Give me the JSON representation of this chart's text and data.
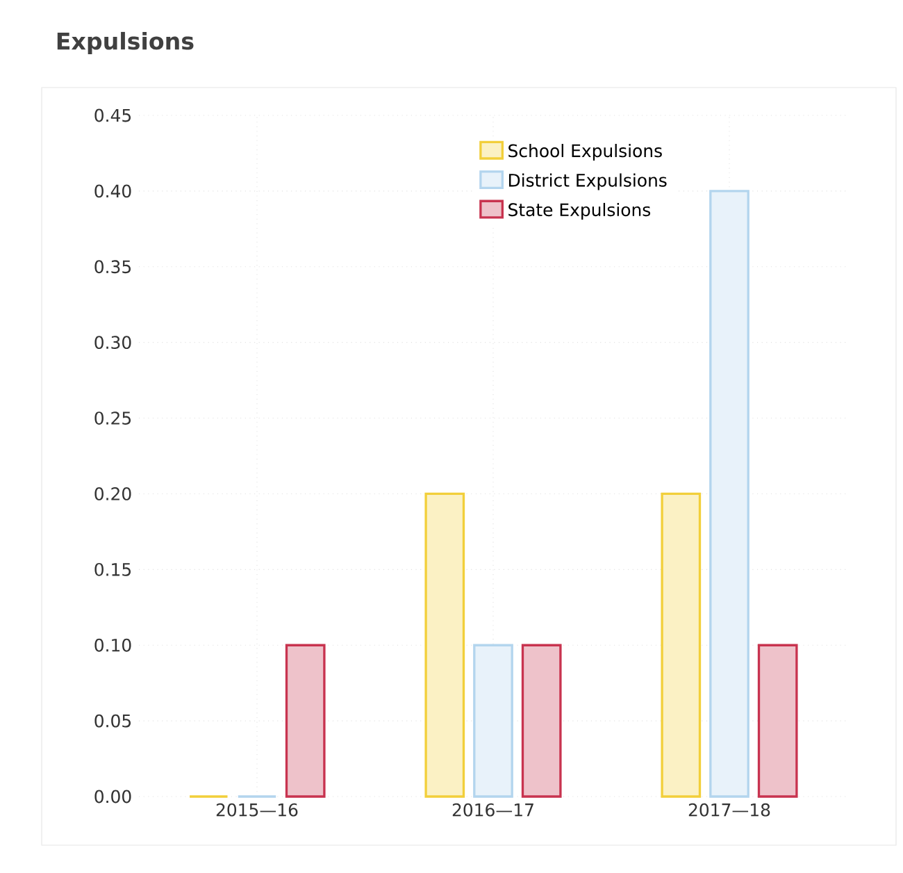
{
  "chart_data": {
    "type": "bar",
    "title": "Expulsions",
    "categories": [
      "2015—16",
      "2016—17",
      "2017—18"
    ],
    "series": [
      {
        "name": "School Expulsions",
        "color": "#f2cf3a",
        "values": [
          0,
          0.2,
          0.2
        ]
      },
      {
        "name": "District Expulsions",
        "color": "#b3d5ee",
        "values": [
          0,
          0.1,
          0.4
        ]
      },
      {
        "name": "State Expulsions",
        "color": "#c8334f",
        "values": [
          0.1,
          0.1,
          0.1
        ]
      }
    ],
    "ylim": [
      0,
      0.45
    ],
    "yticks": [
      {
        "value": 0,
        "label": "0.00"
      },
      {
        "value": 0.05,
        "label": "0.05"
      },
      {
        "value": 0.1,
        "label": "0.10"
      },
      {
        "value": 0.15,
        "label": "0.15"
      },
      {
        "value": 0.2,
        "label": "0.20"
      },
      {
        "value": 0.25,
        "label": "0.25"
      },
      {
        "value": 0.3,
        "label": "0.30"
      },
      {
        "value": 0.35,
        "label": "0.35"
      },
      {
        "value": 0.4,
        "label": "0.40"
      },
      {
        "value": 0.45,
        "label": "0.45"
      }
    ],
    "grid": true,
    "legend": "top right"
  }
}
